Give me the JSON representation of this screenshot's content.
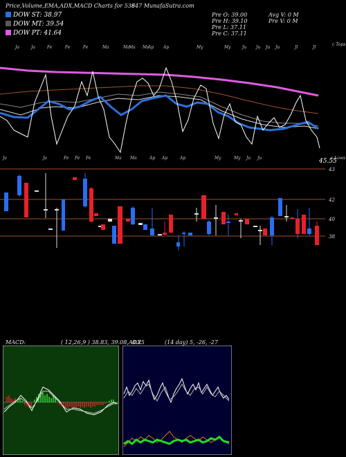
{
  "header": {
    "title": "Price,Volume,EMA,ADX,MACD Charts for 538",
    "ticker_suffix": "647 MunafaSutra.com"
  },
  "legend": [
    {
      "label": "DOW ST: 38.97",
      "color": "#2f6fd8"
    },
    {
      "label": "DOW MT: 39.54",
      "color": "#5a5a5a"
    },
    {
      "label": "DOW PT: 41.64",
      "color": "#e05be0"
    }
  ],
  "stats": {
    "left": [
      "Pre O: 39.00",
      "Pre H: 39.10",
      "Pre L: 37.11",
      "Pre C: 37.11"
    ],
    "right": [
      "Avg V: 0 M",
      "Pre V: 0 M"
    ]
  },
  "price_panel": {
    "top_label": "c Tops",
    "bottom_label": "c Lows",
    "last_price": "45.55"
  },
  "candles_panel": {
    "y_ticks": [
      "43",
      "42",
      "40",
      "38"
    ]
  },
  "macd": {
    "label": "MACD:",
    "values": "( 12,26,9 ) 38.83, 39.08, -0.25"
  },
  "adx": {
    "label": "ADX",
    "values": "(14 day) 5, -26, -27"
  },
  "colors": {
    "st": "#2f6fd8",
    "mt": "#5a5a5a",
    "pt": "#e05be0",
    "up": "#2a6ef0",
    "down": "#e8202a",
    "macd_bg": "#0a3a0a",
    "adx_bg": "#000030"
  }
}
